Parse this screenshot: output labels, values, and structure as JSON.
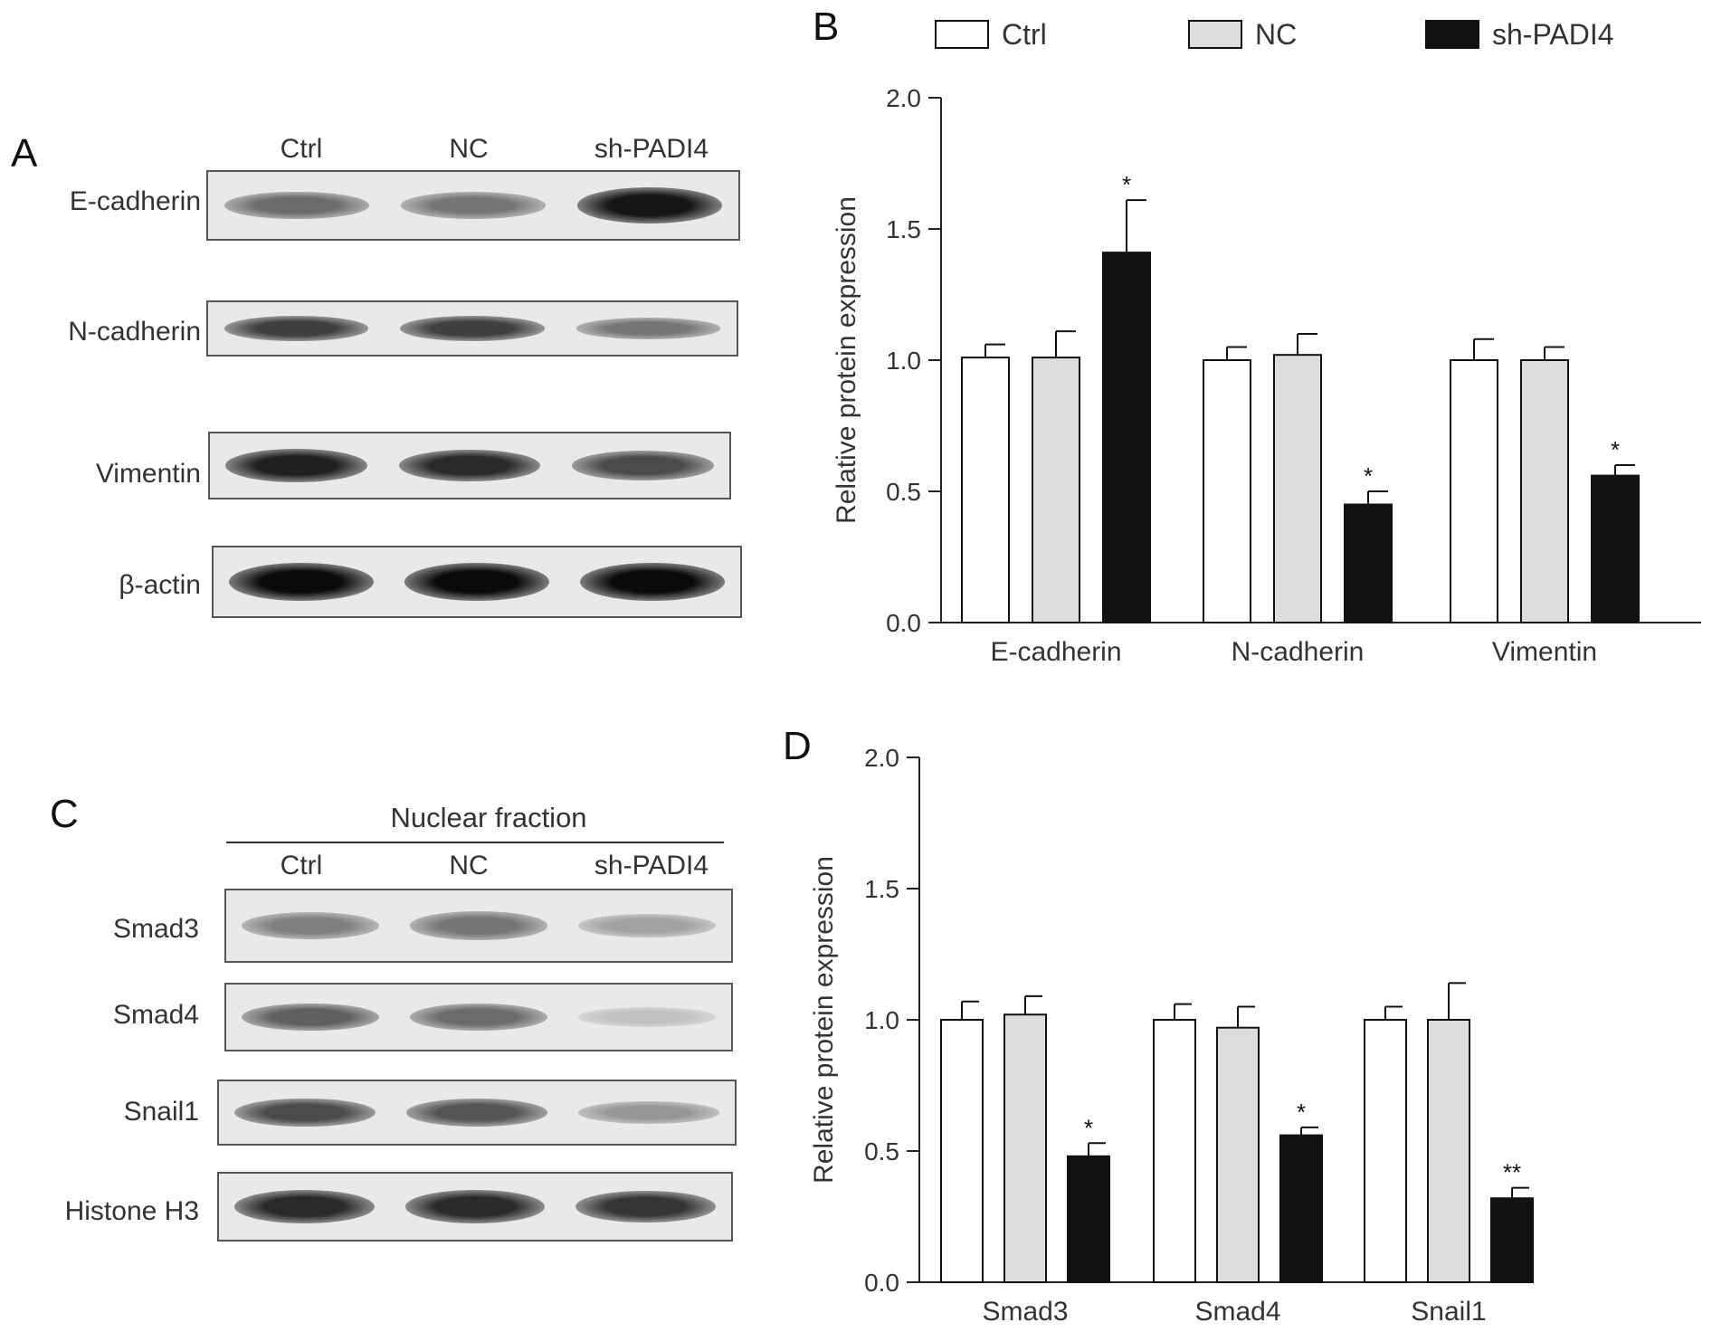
{
  "panels": {
    "A": {
      "letter": "A",
      "lanes": [
        "Ctrl",
        "NC",
        "sh-PADI4"
      ],
      "blots": [
        {
          "label": "E-cadherin",
          "intensity": [
            0.55,
            0.5,
            0.95
          ]
        },
        {
          "label": "N-cadherin",
          "intensity": [
            0.75,
            0.75,
            0.5
          ]
        },
        {
          "label": "Vimentin",
          "intensity": [
            0.9,
            0.85,
            0.7
          ]
        },
        {
          "label": "β-actin",
          "intensity": [
            1.0,
            1.0,
            1.0
          ]
        }
      ]
    },
    "B": {
      "letter": "B"
    },
    "C": {
      "letter": "C",
      "header": "Nuclear fraction",
      "lanes": [
        "Ctrl",
        "NC",
        "sh-PADI4"
      ],
      "blots": [
        {
          "label": "Smad3",
          "intensity": [
            0.45,
            0.5,
            0.3
          ]
        },
        {
          "label": "Smad4",
          "intensity": [
            0.6,
            0.55,
            0.15
          ]
        },
        {
          "label": "Snail1",
          "intensity": [
            0.7,
            0.65,
            0.35
          ]
        },
        {
          "label": "Histone H3",
          "intensity": [
            0.85,
            0.85,
            0.8
          ]
        }
      ]
    },
    "D": {
      "letter": "D"
    }
  },
  "legend": [
    {
      "label": "Ctrl",
      "color": "#ffffff"
    },
    {
      "label": "NC",
      "color": "#dddddd"
    },
    {
      "label": "sh-PADI4",
      "color": "#111111"
    }
  ],
  "chart_data": [
    {
      "type": "bar",
      "panel": "B",
      "categories": [
        "E-cadherin",
        "N-cadherin",
        "Vimentin"
      ],
      "series": [
        {
          "name": "Ctrl",
          "values": [
            1.01,
            1.0,
            1.0
          ],
          "errors": [
            0.05,
            0.05,
            0.08
          ]
        },
        {
          "name": "NC",
          "values": [
            1.01,
            1.02,
            1.0
          ],
          "errors": [
            0.1,
            0.08,
            0.05
          ]
        },
        {
          "name": "sh-PADI4",
          "values": [
            1.41,
            0.45,
            0.56
          ],
          "errors": [
            0.2,
            0.05,
            0.04
          ]
        }
      ],
      "significance": [
        [
          "",
          "",
          "*"
        ],
        [
          "",
          "",
          "*"
        ],
        [
          "",
          "",
          "*"
        ]
      ],
      "ylabel": "Relative protein expression",
      "ylim": [
        0,
        2.0
      ],
      "yticks": [
        "0.0",
        "0.5",
        "1.0",
        "1.5",
        "2.0"
      ]
    },
    {
      "type": "bar",
      "panel": "D",
      "categories": [
        "Smad3",
        "Smad4",
        "Snail1"
      ],
      "series": [
        {
          "name": "Ctrl",
          "values": [
            1.0,
            1.0,
            1.0
          ],
          "errors": [
            0.07,
            0.06,
            0.05
          ]
        },
        {
          "name": "NC",
          "values": [
            1.02,
            0.97,
            1.0
          ],
          "errors": [
            0.07,
            0.08,
            0.14
          ]
        },
        {
          "name": "sh-PADI4",
          "values": [
            0.48,
            0.56,
            0.32
          ],
          "errors": [
            0.05,
            0.03,
            0.04
          ]
        }
      ],
      "significance": [
        [
          "",
          "",
          "*"
        ],
        [
          "",
          "",
          "*"
        ],
        [
          "",
          "",
          "**"
        ]
      ],
      "ylabel": "Relative protein expression",
      "ylim": [
        0,
        2.0
      ],
      "yticks": [
        "0.0",
        "0.5",
        "1.0",
        "1.5",
        "2.0"
      ]
    }
  ]
}
